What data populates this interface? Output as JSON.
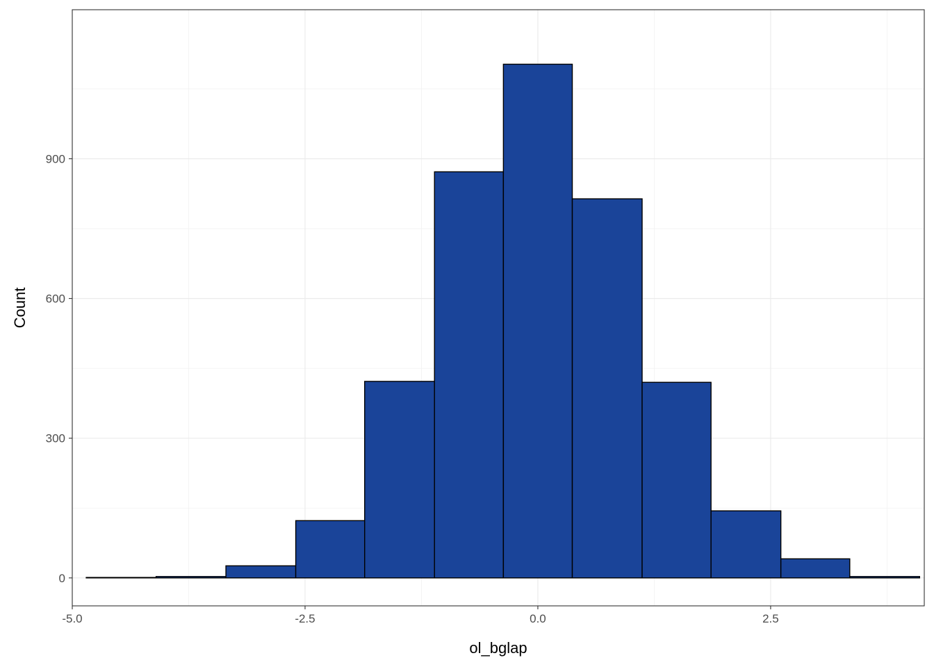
{
  "chart_data": {
    "type": "bar",
    "subtype": "histogram",
    "title": "",
    "xlabel": "ol_bglap",
    "ylabel": "Count",
    "xlim": [
      -5.0,
      4.15
    ],
    "ylim": [
      -60,
      1220
    ],
    "x_ticks": [
      -5.0,
      -2.5,
      0.0,
      2.5
    ],
    "x_tick_labels": [
      "-5.0",
      "-2.5",
      "0.0",
      "2.5"
    ],
    "y_ticks": [
      0,
      300,
      600,
      900
    ],
    "y_tick_labels": [
      "0",
      "300",
      "600",
      "900"
    ],
    "x_minor_ticks": [
      -3.75,
      -1.25,
      1.25,
      3.75
    ],
    "y_minor_ticks": [
      150,
      450,
      750,
      1050
    ],
    "bins": [
      {
        "x0": -4.85,
        "x1": -4.1,
        "count": 1
      },
      {
        "x0": -4.1,
        "x1": -3.35,
        "count": 3
      },
      {
        "x0": -3.35,
        "x1": -2.6,
        "count": 26
      },
      {
        "x0": -2.6,
        "x1": -1.86,
        "count": 123
      },
      {
        "x0": -1.86,
        "x1": -1.11,
        "count": 422
      },
      {
        "x0": -1.11,
        "x1": -0.37,
        "count": 872
      },
      {
        "x0": -0.37,
        "x1": 0.37,
        "count": 1103
      },
      {
        "x0": 0.37,
        "x1": 1.12,
        "count": 814
      },
      {
        "x0": 1.12,
        "x1": 1.86,
        "count": 420
      },
      {
        "x0": 1.86,
        "x1": 2.61,
        "count": 144
      },
      {
        "x0": 2.61,
        "x1": 3.35,
        "count": 41
      },
      {
        "x0": 3.35,
        "x1": 4.1,
        "count": 3
      }
    ],
    "bar_fill": "#1a4499",
    "bar_stroke": "#000000",
    "grid": true,
    "theme": "bw",
    "legend": "none"
  }
}
